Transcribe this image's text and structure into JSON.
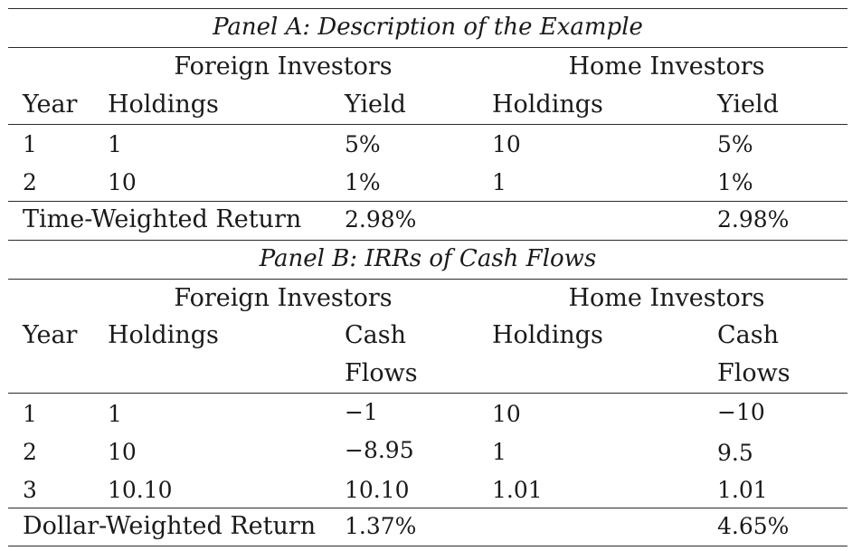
{
  "panel_a": {
    "title": "Panel A: Description of the Example",
    "group_foreign": "Foreign Investors",
    "group_home": "Home Investors",
    "headers": {
      "year": "Year",
      "foreign_holdings": "Holdings",
      "foreign_yield": "Yield",
      "home_holdings": "Holdings",
      "home_yield": "Yield"
    },
    "rows": [
      {
        "year": "1",
        "foreign_holdings": "1",
        "foreign_yield": "5%",
        "home_holdings": "10",
        "home_yield": "5%"
      },
      {
        "year": "2",
        "foreign_holdings": "10",
        "foreign_yield": "1%",
        "home_holdings": "1",
        "home_yield": "1%"
      }
    ],
    "summary": {
      "label": "Time-Weighted Return",
      "foreign": "2.98%",
      "home": "2.98%"
    }
  },
  "panel_b": {
    "title": "Panel B: IRRs of Cash Flows",
    "group_foreign": "Foreign Investors",
    "group_home": "Home Investors",
    "headers": {
      "year": "Year",
      "foreign_holdings": "Holdings",
      "foreign_cash_line1": "Cash",
      "foreign_cash_line2": "Flows",
      "home_holdings": "Holdings",
      "home_cash_line1": "Cash",
      "home_cash_line2": "Flows"
    },
    "rows": [
      {
        "year": "1",
        "foreign_holdings": "1",
        "foreign_cash": "−1",
        "home_holdings": "10",
        "home_cash": "−10"
      },
      {
        "year": "2",
        "foreign_holdings": "10",
        "foreign_cash": "−8.95",
        "home_holdings": "1",
        "home_cash": "9.5"
      },
      {
        "year": "3",
        "foreign_holdings": "10.10",
        "foreign_cash": "10.10",
        "home_holdings": "1.01",
        "home_cash": "1.01"
      }
    ],
    "summary": {
      "label": "Dollar-Weighted Return",
      "foreign": "1.37%",
      "home": "4.65%"
    }
  }
}
